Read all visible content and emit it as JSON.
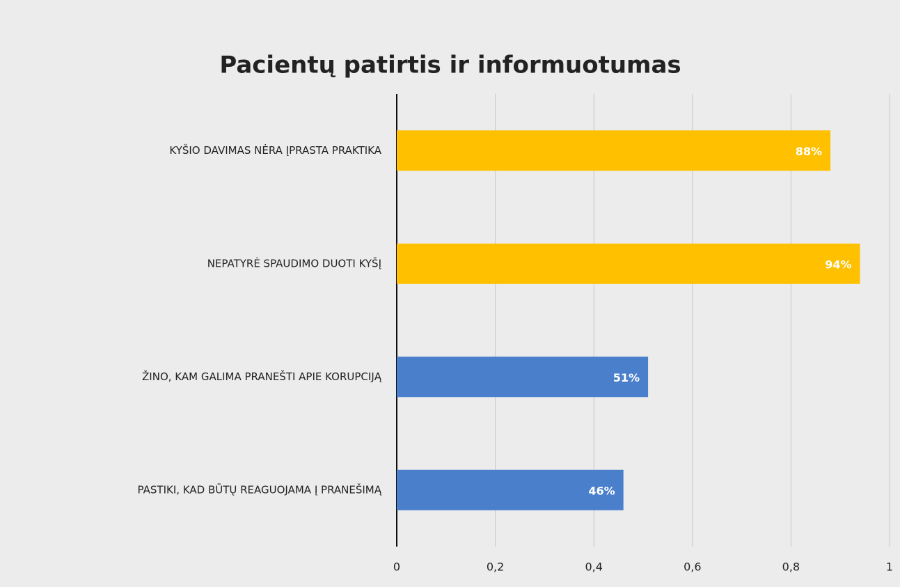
{
  "chart_data": {
    "type": "barh",
    "title": "Pacientų patirtis ir informuotumas",
    "categories": [
      "KYŠIO DAVIMAS NĖRA ĮPRASTA PRAKTIKA",
      "NEPATYRĖ SPAUDIMO DUOTI KYŠĮ",
      "ŽINO, KAM GALIMA PRANEŠTI APIE KORUPCIJĄ",
      "PASTIKI, KAD BŪTŲ REAGUOJAMA Į PRANEŠIMĄ"
    ],
    "values": [
      0.88,
      0.94,
      0.51,
      0.46
    ],
    "value_labels": [
      "88%",
      "94%",
      "51%",
      "46%"
    ],
    "colors": [
      "#ffc000",
      "#ffc000",
      "#4a7fcc",
      "#4a7fcc"
    ],
    "xlim": [
      0,
      1
    ],
    "xticks": [
      0,
      {
        "value": 0.2,
        "label": "0,2"
      },
      {
        "value": 0.4,
        "label": "0,4"
      },
      {
        "value": 0.6,
        "label": "0,6"
      },
      {
        "value": 0.8,
        "label": "0,8"
      },
      1
    ],
    "grid": true
  }
}
